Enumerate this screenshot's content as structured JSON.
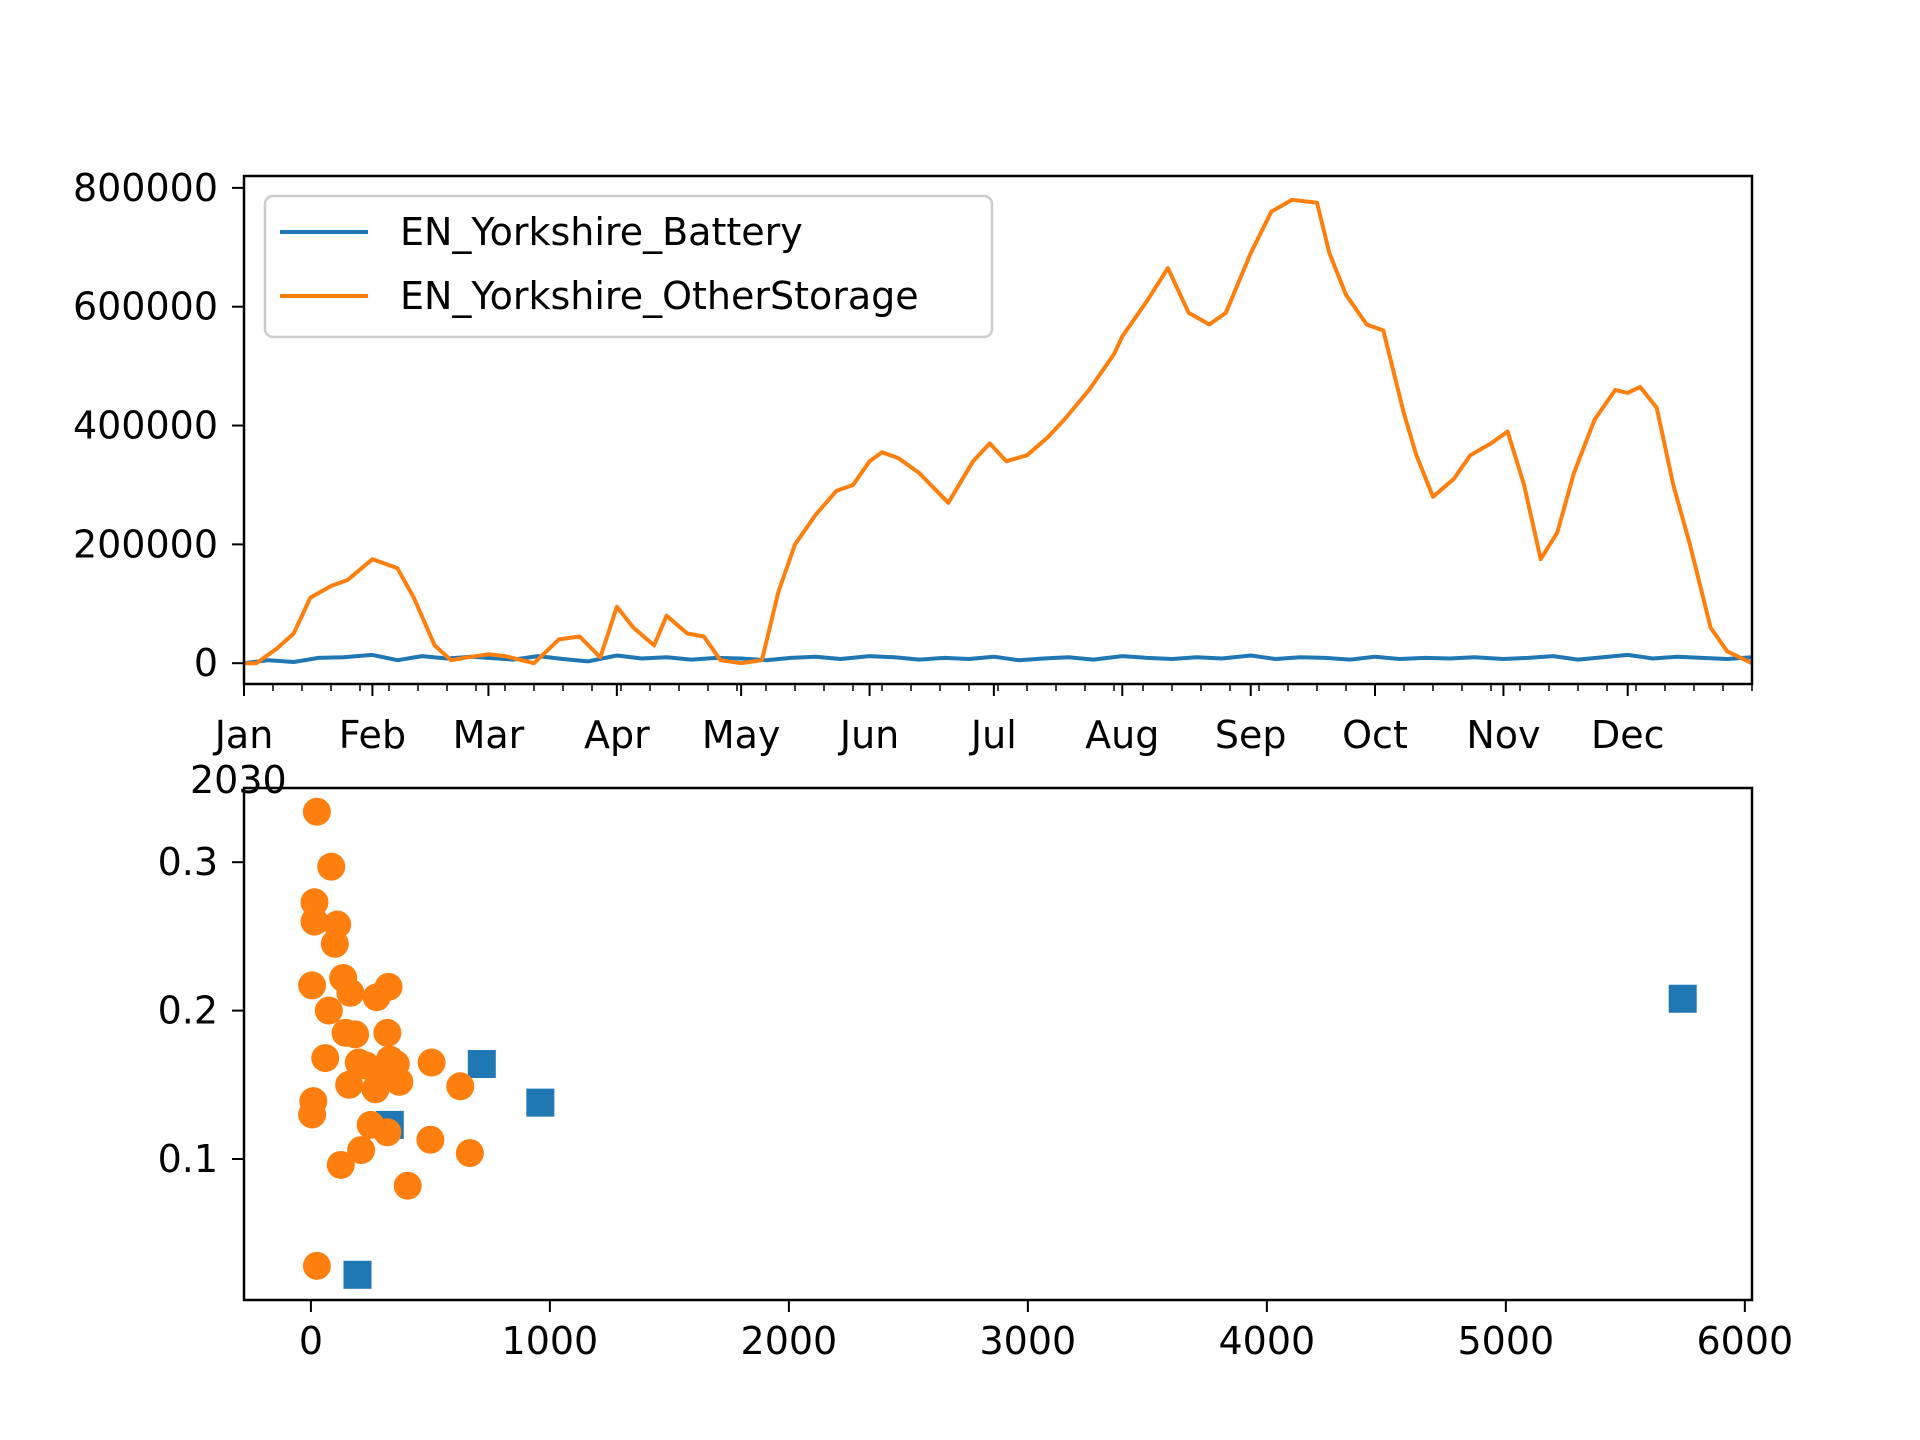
{
  "colors": {
    "battery": "#1f77b4",
    "other_storage": "#ff7f0e",
    "axes": "#000000",
    "legend_border": "#cccccc"
  },
  "chart_data": [
    {
      "type": "line",
      "title": "",
      "xlabel": "",
      "ylabel": "",
      "x_axis": "date",
      "xlim": [
        "2030-01-01",
        "2030-12-31"
      ],
      "ylim": [
        -35000,
        820000
      ],
      "x_tick_labels": [
        "Jan",
        "Feb",
        "Mar",
        "Apr",
        "May",
        "Jun",
        "Jul",
        "Aug",
        "Sep",
        "Oct",
        "Nov",
        "Dec"
      ],
      "x_tick_dates": [
        "2030-01-01",
        "2030-02-01",
        "2030-03-01",
        "2030-04-01",
        "2030-05-01",
        "2030-06-01",
        "2030-07-01",
        "2030-08-01",
        "2030-09-01",
        "2030-10-01",
        "2030-11-01",
        "2030-12-01"
      ],
      "x_offset_label": "2030",
      "y_ticks": [
        0,
        200000,
        400000,
        600000,
        800000
      ],
      "y_tick_labels": [
        "0",
        "200000",
        "400000",
        "600000",
        "800000"
      ],
      "legend": {
        "placement": "upper-left",
        "entries": [
          "EN_Yorkshire_Battery",
          "EN_Yorkshire_OtherStorage"
        ]
      },
      "grid": false,
      "series": [
        {
          "name": "EN_Yorkshire_Battery",
          "color": "#1f77b4",
          "x": [
            "2030-01-01",
            "2030-01-07",
            "2030-01-13",
            "2030-01-19",
            "2030-01-25",
            "2030-02-01",
            "2030-02-07",
            "2030-02-13",
            "2030-02-19",
            "2030-02-25",
            "2030-03-01",
            "2030-03-07",
            "2030-03-13",
            "2030-03-19",
            "2030-03-25",
            "2030-04-01",
            "2030-04-07",
            "2030-04-13",
            "2030-04-19",
            "2030-04-25",
            "2030-05-01",
            "2030-05-07",
            "2030-05-13",
            "2030-05-19",
            "2030-05-25",
            "2030-06-01",
            "2030-06-07",
            "2030-06-13",
            "2030-06-19",
            "2030-06-25",
            "2030-07-01",
            "2030-07-07",
            "2030-07-13",
            "2030-07-19",
            "2030-07-25",
            "2030-08-01",
            "2030-08-07",
            "2030-08-13",
            "2030-08-19",
            "2030-08-25",
            "2030-09-01",
            "2030-09-07",
            "2030-09-13",
            "2030-09-19",
            "2030-09-25",
            "2030-10-01",
            "2030-10-07",
            "2030-10-13",
            "2030-10-19",
            "2030-10-25",
            "2030-11-01",
            "2030-11-07",
            "2030-11-13",
            "2030-11-19",
            "2030-11-25",
            "2030-12-01",
            "2030-12-07",
            "2030-12-13",
            "2030-12-19",
            "2030-12-25",
            "2030-12-31"
          ],
          "y": [
            0,
            5000,
            2000,
            9000,
            10000,
            14000,
            5000,
            12000,
            8000,
            11000,
            9000,
            6000,
            12000,
            7000,
            3000,
            13000,
            8000,
            10000,
            6000,
            9000,
            8000,
            5000,
            9000,
            11000,
            7000,
            12000,
            10000,
            6000,
            9000,
            7000,
            11000,
            5000,
            8000,
            10000,
            6000,
            12000,
            9000,
            7000,
            10000,
            8000,
            13000,
            7000,
            10000,
            9000,
            6000,
            11000,
            7000,
            9000,
            8000,
            10000,
            7000,
            9000,
            12000,
            6000,
            10000,
            14000,
            8000,
            11000,
            9000,
            7000,
            10000
          ]
        },
        {
          "name": "EN_Yorkshire_OtherStorage",
          "color": "#ff7f0e",
          "x": [
            "2030-01-01",
            "2030-01-04",
            "2030-01-09",
            "2030-01-13",
            "2030-01-17",
            "2030-01-22",
            "2030-01-26",
            "2030-02-01",
            "2030-02-07",
            "2030-02-11",
            "2030-02-16",
            "2030-02-20",
            "2030-02-24",
            "2030-03-01",
            "2030-03-05",
            "2030-03-12",
            "2030-03-18",
            "2030-03-23",
            "2030-03-28",
            "2030-04-01",
            "2030-04-05",
            "2030-04-10",
            "2030-04-13",
            "2030-04-18",
            "2030-04-22",
            "2030-04-26",
            "2030-05-01",
            "2030-05-06",
            "2030-05-10",
            "2030-05-14",
            "2030-05-19",
            "2030-05-24",
            "2030-05-28",
            "2030-06-01",
            "2030-06-04",
            "2030-06-08",
            "2030-06-13",
            "2030-06-20",
            "2030-06-26",
            "2030-06-30",
            "2030-07-04",
            "2030-07-09",
            "2030-07-14",
            "2030-07-18",
            "2030-07-24",
            "2030-07-30",
            "2030-08-01",
            "2030-08-07",
            "2030-08-12",
            "2030-08-17",
            "2030-08-22",
            "2030-08-26",
            "2030-09-01",
            "2030-09-06",
            "2030-09-11",
            "2030-09-17",
            "2030-09-20",
            "2030-09-24",
            "2030-09-29",
            "2030-10-03",
            "2030-10-08",
            "2030-10-11",
            "2030-10-15",
            "2030-10-20",
            "2030-10-24",
            "2030-10-29",
            "2030-11-02",
            "2030-11-06",
            "2030-11-10",
            "2030-11-14",
            "2030-11-18",
            "2030-11-23",
            "2030-11-28",
            "2030-12-01",
            "2030-12-04",
            "2030-12-08",
            "2030-12-12",
            "2030-12-16",
            "2030-12-21",
            "2030-12-25",
            "2030-12-28",
            "2030-12-31"
          ],
          "y": [
            0,
            0,
            25000,
            50000,
            110000,
            130000,
            140000,
            175000,
            160000,
            110000,
            30000,
            5000,
            10000,
            15000,
            12000,
            0,
            40000,
            45000,
            10000,
            95000,
            60000,
            30000,
            80000,
            50000,
            45000,
            5000,
            0,
            5000,
            120000,
            200000,
            250000,
            290000,
            300000,
            340000,
            355000,
            345000,
            320000,
            270000,
            340000,
            370000,
            340000,
            350000,
            380000,
            410000,
            460000,
            520000,
            550000,
            610000,
            665000,
            590000,
            570000,
            590000,
            690000,
            760000,
            780000,
            775000,
            690000,
            620000,
            570000,
            560000,
            420000,
            350000,
            280000,
            310000,
            350000,
            370000,
            390000,
            300000,
            175000,
            220000,
            320000,
            410000,
            460000,
            455000,
            465000,
            430000,
            300000,
            200000,
            60000,
            20000,
            10000,
            0
          ]
        }
      ]
    },
    {
      "type": "scatter",
      "title": "",
      "xlabel": "",
      "ylabel": "",
      "xlim": [
        -280,
        6030
      ],
      "ylim": [
        0.005,
        0.35
      ],
      "x_ticks": [
        0,
        1000,
        2000,
        3000,
        4000,
        5000,
        6000
      ],
      "x_tick_labels": [
        "0",
        "1000",
        "2000",
        "3000",
        "4000",
        "5000",
        "6000"
      ],
      "y_ticks": [
        0.1,
        0.2,
        0.3
      ],
      "y_tick_labels": [
        "0.1",
        "0.2",
        "0.3"
      ],
      "grid": false,
      "series": [
        {
          "marker": "square",
          "color": "#1f77b4",
          "points": [
            [
              195,
              0.022
            ],
            [
              330,
              0.123
            ],
            [
              715,
              0.164
            ],
            [
              960,
              0.138
            ],
            [
              5740,
              0.208
            ]
          ]
        },
        {
          "marker": "circle",
          "color": "#ff7f0e",
          "points": [
            [
              25,
              0.334
            ],
            [
              85,
              0.297
            ],
            [
              15,
              0.273
            ],
            [
              15,
              0.26
            ],
            [
              110,
              0.258
            ],
            [
              100,
              0.245
            ],
            [
              5,
              0.217
            ],
            [
              135,
              0.222
            ],
            [
              165,
              0.212
            ],
            [
              325,
              0.216
            ],
            [
              75,
              0.2
            ],
            [
              275,
              0.209
            ],
            [
              320,
              0.185
            ],
            [
              145,
              0.185
            ],
            [
              185,
              0.184
            ],
            [
              60,
              0.168
            ],
            [
              200,
              0.165
            ],
            [
              230,
              0.163
            ],
            [
              330,
              0.167
            ],
            [
              355,
              0.164
            ],
            [
              505,
              0.165
            ],
            [
              160,
              0.15
            ],
            [
              270,
              0.147
            ],
            [
              300,
              0.155
            ],
            [
              370,
              0.152
            ],
            [
              625,
              0.149
            ],
            [
              10,
              0.139
            ],
            [
              5,
              0.13
            ],
            [
              250,
              0.123
            ],
            [
              320,
              0.118
            ],
            [
              500,
              0.113
            ],
            [
              210,
              0.106
            ],
            [
              665,
              0.104
            ],
            [
              125,
              0.096
            ],
            [
              405,
              0.082
            ],
            [
              25,
              0.028
            ]
          ]
        }
      ]
    }
  ]
}
